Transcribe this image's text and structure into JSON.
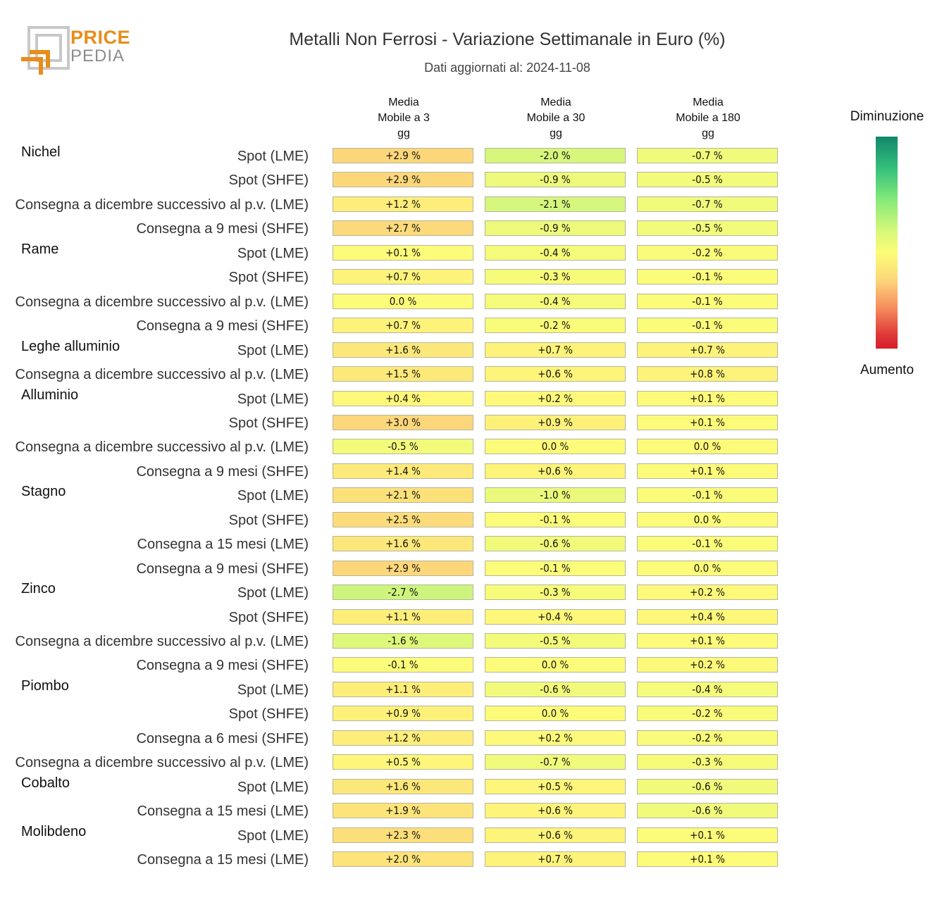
{
  "logo": {
    "line1": "PRICE",
    "line2": "PEDIA"
  },
  "chart_data": {
    "type": "heatmap",
    "title": "Metalli Non Ferrosi - Variazione Settimanale in Euro (%)",
    "subtitle": "Dati aggiornati al: 2024-11-08",
    "columns": [
      {
        "line1": "Media",
        "line2": "Mobile a 3",
        "line3": "gg"
      },
      {
        "line1": "Media",
        "line2": "Mobile a 30",
        "line3": "gg"
      },
      {
        "line1": "Media",
        "line2": "Mobile a 180",
        "line3": "gg"
      }
    ],
    "unit": "%",
    "legend": {
      "top": "Diminuzione",
      "bottom": "Aumento",
      "placement": "right"
    },
    "colors": {
      "decrease": "#11866a",
      "neutral": "#fdfc77",
      "increase": "#d61e2a"
    },
    "rows": [
      {
        "group": "Nichel",
        "label": "Spot (LME)",
        "values": [
          "+2.9 %",
          "-2.0 %",
          "-0.7 %"
        ]
      },
      {
        "group": "",
        "label": "Spot (SHFE)",
        "values": [
          "+2.9 %",
          "-0.9 %",
          "-0.5 %"
        ]
      },
      {
        "group": "",
        "label": "Consegna a dicembre successivo al p.v. (LME)",
        "values": [
          "+1.2 %",
          "-2.1 %",
          "-0.7 %"
        ]
      },
      {
        "group": "",
        "label": "Consegna a 9 mesi (SHFE)",
        "values": [
          "+2.7 %",
          "-0.9 %",
          "-0.5 %"
        ]
      },
      {
        "group": "Rame",
        "label": "Spot (LME)",
        "values": [
          "+0.1 %",
          "-0.4 %",
          "-0.2 %"
        ]
      },
      {
        "group": "",
        "label": "Spot (SHFE)",
        "values": [
          "+0.7 %",
          "-0.3 %",
          "-0.1 %"
        ]
      },
      {
        "group": "",
        "label": "Consegna a dicembre successivo al p.v. (LME)",
        "values": [
          "0.0 %",
          "-0.4 %",
          "-0.1 %"
        ]
      },
      {
        "group": "",
        "label": "Consegna a 9 mesi (SHFE)",
        "values": [
          "+0.7 %",
          "-0.2 %",
          "-0.1 %"
        ]
      },
      {
        "group": "Leghe alluminio",
        "label": "Spot (LME)",
        "values": [
          "+1.6 %",
          "+0.7 %",
          "+0.7 %"
        ]
      },
      {
        "group": "",
        "label": "Consegna a dicembre successivo al p.v. (LME)",
        "values": [
          "+1.5 %",
          "+0.6 %",
          "+0.8 %"
        ]
      },
      {
        "group": "Alluminio",
        "label": "Spot (LME)",
        "values": [
          "+0.4 %",
          "+0.2 %",
          "+0.1 %"
        ]
      },
      {
        "group": "",
        "label": "Spot (SHFE)",
        "values": [
          "+3.0 %",
          "+0.9 %",
          "+0.1 %"
        ]
      },
      {
        "group": "",
        "label": "Consegna a dicembre successivo al p.v. (LME)",
        "values": [
          "-0.5 %",
          "0.0 %",
          "0.0 %"
        ]
      },
      {
        "group": "",
        "label": "Consegna a 9 mesi (SHFE)",
        "values": [
          "+1.4 %",
          "+0.6 %",
          "+0.1 %"
        ]
      },
      {
        "group": "Stagno",
        "label": "Spot (LME)",
        "values": [
          "+2.1 %",
          "-1.0 %",
          "-0.1 %"
        ]
      },
      {
        "group": "",
        "label": "Spot (SHFE)",
        "values": [
          "+2.5 %",
          "-0.1 %",
          "0.0 %"
        ]
      },
      {
        "group": "",
        "label": "Consegna a 15 mesi (LME)",
        "values": [
          "+1.6 %",
          "-0.6 %",
          "-0.1 %"
        ]
      },
      {
        "group": "",
        "label": "Consegna a 9 mesi (SHFE)",
        "values": [
          "+2.9 %",
          "-0.1 %",
          "0.0 %"
        ]
      },
      {
        "group": "Zinco",
        "label": "Spot (LME)",
        "values": [
          "-2.7 %",
          "-0.3 %",
          "+0.2 %"
        ]
      },
      {
        "group": "",
        "label": "Spot (SHFE)",
        "values": [
          "+1.1 %",
          "+0.4 %",
          "+0.4 %"
        ]
      },
      {
        "group": "",
        "label": "Consegna a dicembre successivo al p.v. (LME)",
        "values": [
          "-1.6 %",
          "-0.5 %",
          "+0.1 %"
        ]
      },
      {
        "group": "",
        "label": "Consegna a 9 mesi (SHFE)",
        "values": [
          "-0.1 %",
          "0.0 %",
          "+0.2 %"
        ]
      },
      {
        "group": "Piombo",
        "label": "Spot (LME)",
        "values": [
          "+1.1 %",
          "-0.6 %",
          "-0.4 %"
        ]
      },
      {
        "group": "",
        "label": "Spot (SHFE)",
        "values": [
          "+0.9 %",
          "0.0 %",
          "-0.2 %"
        ]
      },
      {
        "group": "",
        "label": "Consegna a 6 mesi (SHFE)",
        "values": [
          "+1.2 %",
          "+0.2 %",
          "-0.2 %"
        ]
      },
      {
        "group": "",
        "label": "Consegna a dicembre successivo al p.v. (LME)",
        "values": [
          "+0.5 %",
          "-0.7 %",
          "-0.3 %"
        ]
      },
      {
        "group": "Cobalto",
        "label": "Spot (LME)",
        "values": [
          "+1.6 %",
          "+0.5 %",
          "-0.6 %"
        ]
      },
      {
        "group": "",
        "label": "Consegna a 15 mesi (LME)",
        "values": [
          "+1.9 %",
          "+0.6 %",
          "-0.6 %"
        ]
      },
      {
        "group": "Molibdeno",
        "label": "Spot (LME)",
        "values": [
          "+2.3 %",
          "+0.6 %",
          "+0.1 %"
        ]
      },
      {
        "group": "",
        "label": "Consegna a 15 mesi (LME)",
        "values": [
          "+2.0 %",
          "+0.7 %",
          "+0.1 %"
        ]
      }
    ]
  }
}
